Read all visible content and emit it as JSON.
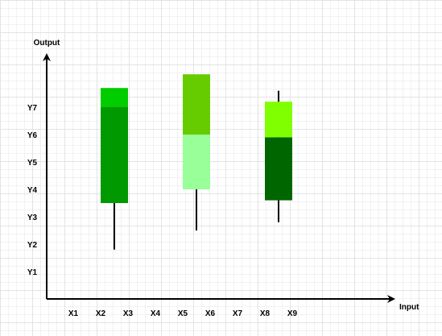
{
  "axes": {
    "x_title": "Input",
    "y_title": "Output",
    "x_labels": [
      "X1",
      "X2",
      "X3",
      "X4",
      "X5",
      "X6",
      "X7",
      "X8",
      "X9"
    ],
    "y_labels": [
      "Y1",
      "Y2",
      "Y3",
      "Y4",
      "Y5",
      "Y6",
      "Y7"
    ]
  },
  "colors": {
    "axis": "#000000",
    "wick": "#000000"
  },
  "candles": [
    {
      "low": 1.8,
      "high": 7.6,
      "segments": [
        {
          "from": 3.5,
          "to": 7.0,
          "color": "#009900"
        },
        {
          "from": 7.0,
          "to": 7.7,
          "color": "#00cc00"
        }
      ]
    },
    {
      "low": 2.5,
      "high": 8.1,
      "segments": [
        {
          "from": 4.0,
          "to": 6.0,
          "color": "#99ff99"
        },
        {
          "from": 6.0,
          "to": 8.2,
          "color": "#66cc00"
        }
      ]
    },
    {
      "low": 2.8,
      "high": 7.6,
      "segments": [
        {
          "from": 3.6,
          "to": 5.9,
          "color": "#006600"
        },
        {
          "from": 5.9,
          "to": 7.2,
          "color": "#80ff00"
        }
      ]
    }
  ]
}
